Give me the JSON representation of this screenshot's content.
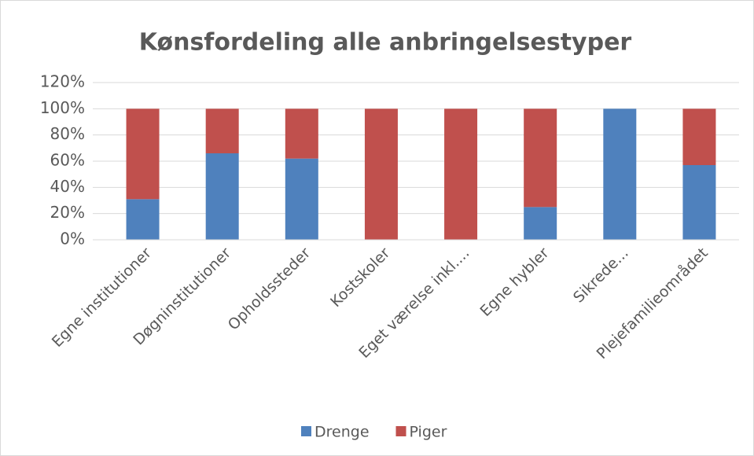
{
  "chart_data": {
    "type": "bar",
    "stacked": true,
    "title": "Kønsfordeling alle anbringelsestyper",
    "categories": [
      "Egne institutioner",
      "Døgninstitutioner",
      "Opholdssteder",
      "Kostskoler",
      "Eget værelse inkl....",
      "Egne hybler",
      "Sikrede...",
      "Plejefamilieområdet"
    ],
    "series": [
      {
        "name": "Drenge",
        "color": "#4f81bd",
        "values": [
          31,
          66,
          62,
          0,
          0,
          25,
          100,
          57
        ]
      },
      {
        "name": "Piger",
        "color": "#c0504d",
        "values": [
          69,
          34,
          38,
          100,
          100,
          75,
          0,
          43
        ]
      }
    ],
    "ylim": [
      0,
      120
    ],
    "yticks": [
      {
        "value": 0,
        "label": "0%"
      },
      {
        "value": 20,
        "label": "20%"
      },
      {
        "value": 40,
        "label": "40%"
      },
      {
        "value": 60,
        "label": "60%"
      },
      {
        "value": 80,
        "label": "80%"
      },
      {
        "value": 100,
        "label": "100%"
      },
      {
        "value": 120,
        "label": "120%"
      }
    ],
    "grid": true,
    "legend": "bottom"
  }
}
